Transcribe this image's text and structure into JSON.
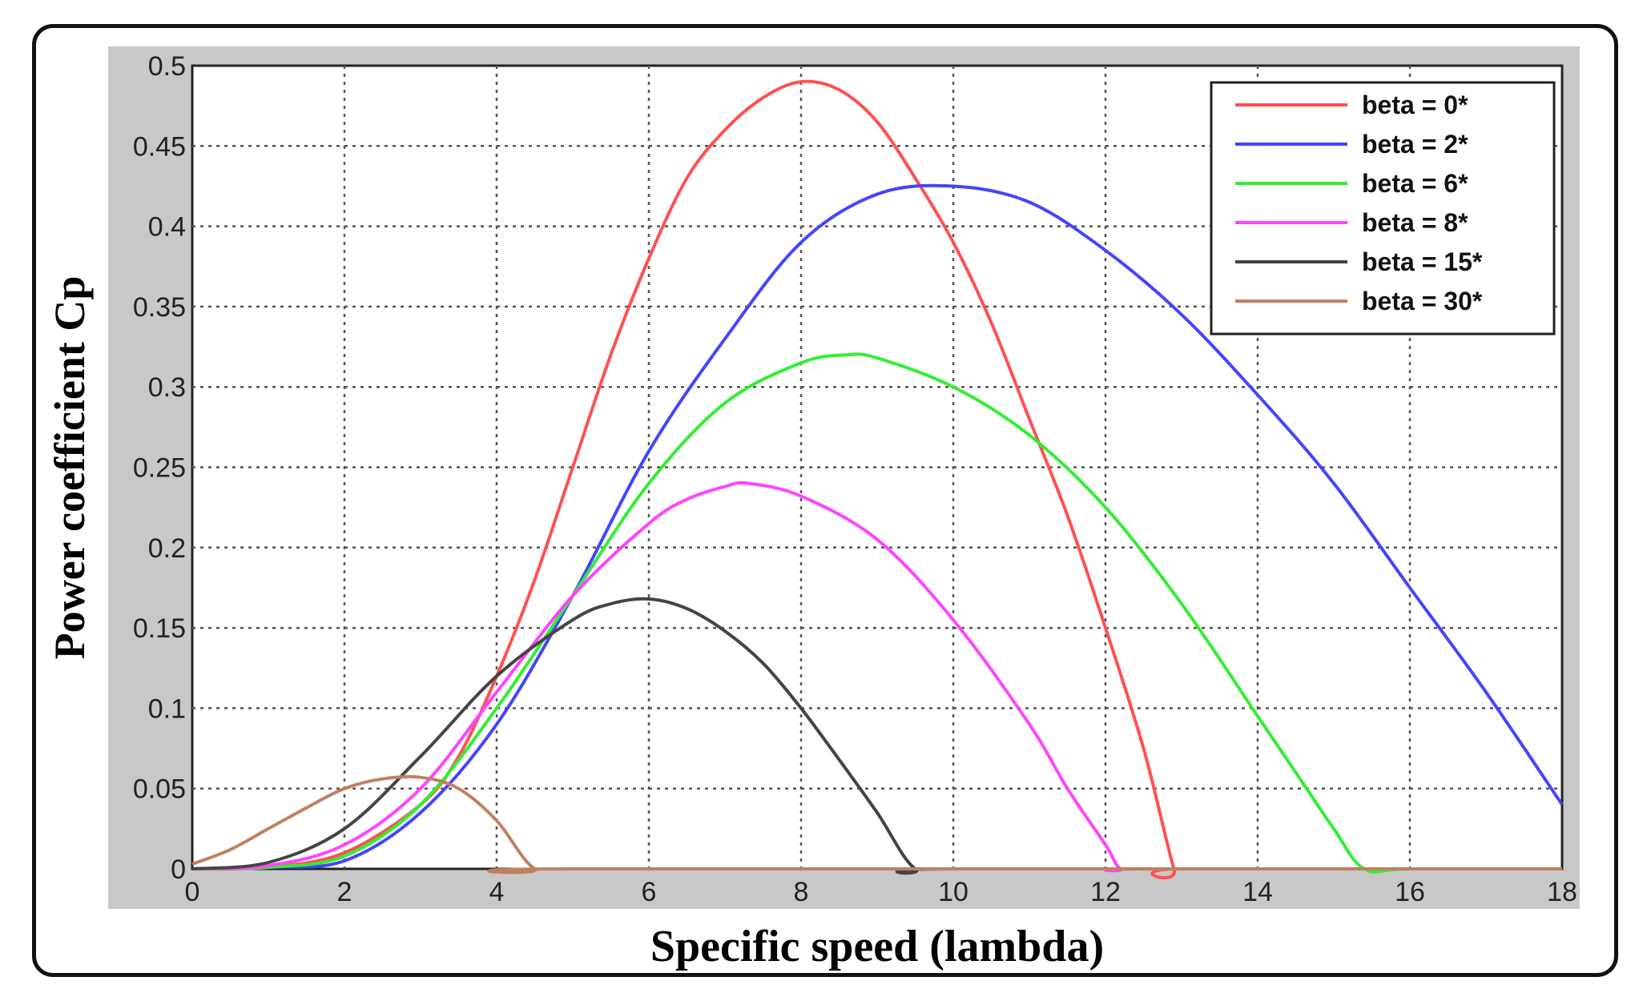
{
  "chart_data": {
    "type": "line",
    "title": "",
    "xlabel": "Specific speed (lambda)",
    "ylabel": "Power coefficient Cp",
    "xlim": [
      0,
      18
    ],
    "ylim": [
      0,
      0.5
    ],
    "xticks": [
      0,
      2,
      4,
      6,
      8,
      10,
      12,
      14,
      16,
      18
    ],
    "yticks": [
      0,
      0.05,
      0.1,
      0.15,
      0.2,
      0.25,
      0.3,
      0.35,
      0.4,
      0.45,
      0.5
    ],
    "xtick_labels": [
      "0",
      "2",
      "4",
      "6",
      "8",
      "10",
      "12",
      "14",
      "16",
      "18"
    ],
    "ytick_labels": [
      "0",
      "0.05",
      "0.1",
      "0.15",
      "0.2",
      "0.25",
      "0.3",
      "0.35",
      "0.4",
      "0.45",
      "0.5"
    ],
    "grid": true,
    "legend_position": "top-right",
    "series": [
      {
        "name": "beta = 0*",
        "color": "#ff5050",
        "x": [
          0,
          1,
          2,
          3,
          3.5,
          4,
          4.5,
          5,
          5.5,
          6,
          6.5,
          7,
          7.5,
          8,
          8.5,
          9,
          9.5,
          10,
          10.5,
          11,
          11.5,
          12,
          12.5,
          12.9,
          13,
          18
        ],
        "y": [
          0,
          0.001,
          0.01,
          0.04,
          0.07,
          0.12,
          0.18,
          0.25,
          0.32,
          0.38,
          0.43,
          0.46,
          0.48,
          0.49,
          0.485,
          0.465,
          0.43,
          0.39,
          0.34,
          0.28,
          0.22,
          0.15,
          0.075,
          0,
          0,
          0
        ]
      },
      {
        "name": "beta = 2*",
        "color": "#4444ff",
        "x": [
          0,
          1,
          2,
          3,
          4,
          5,
          6,
          7,
          8,
          9,
          10,
          11,
          12,
          13,
          14,
          15,
          16,
          17,
          18
        ],
        "y": [
          0,
          0.001,
          0.005,
          0.035,
          0.09,
          0.17,
          0.26,
          0.33,
          0.39,
          0.42,
          0.425,
          0.415,
          0.385,
          0.345,
          0.295,
          0.24,
          0.175,
          0.11,
          0.04
        ]
      },
      {
        "name": "beta = 6*",
        "color": "#33ee33",
        "x": [
          0,
          1,
          2,
          3,
          4,
          5,
          6,
          7,
          8,
          8.6,
          9,
          10,
          11,
          12,
          13,
          14,
          14.5,
          15,
          15.4,
          16,
          18
        ],
        "y": [
          0,
          0.001,
          0.008,
          0.04,
          0.1,
          0.17,
          0.24,
          0.29,
          0.315,
          0.32,
          0.318,
          0.3,
          0.27,
          0.225,
          0.165,
          0.095,
          0.06,
          0.025,
          0,
          0,
          0
        ]
      },
      {
        "name": "beta = 8*",
        "color": "#ff44ff",
        "x": [
          0,
          1,
          2,
          3,
          4,
          5,
          6,
          6.5,
          7,
          7.3,
          8,
          9,
          10,
          11,
          11.5,
          12,
          12.2,
          12.5,
          18
        ],
        "y": [
          0,
          0.002,
          0.015,
          0.05,
          0.11,
          0.17,
          0.215,
          0.23,
          0.238,
          0.24,
          0.232,
          0.205,
          0.155,
          0.09,
          0.05,
          0.015,
          0,
          0,
          0
        ]
      },
      {
        "name": "beta = 15*",
        "color": "#444444",
        "x": [
          0,
          1,
          2,
          3,
          4,
          5,
          5.5,
          6,
          6.5,
          7,
          7.5,
          8,
          8.5,
          9,
          9.5,
          10,
          18
        ],
        "y": [
          0,
          0.004,
          0.025,
          0.07,
          0.12,
          0.155,
          0.165,
          0.168,
          0.162,
          0.148,
          0.128,
          0.1,
          0.068,
          0.035,
          0,
          0,
          0
        ]
      },
      {
        "name": "beta = 30*",
        "color": "#c08060",
        "x": [
          0,
          0.5,
          1,
          1.5,
          2,
          2.5,
          3,
          3.5,
          4,
          4.5,
          5,
          18
        ],
        "y": [
          0.003,
          0.012,
          0.025,
          0.038,
          0.05,
          0.056,
          0.057,
          0.05,
          0.03,
          0,
          0,
          0
        ]
      }
    ]
  }
}
